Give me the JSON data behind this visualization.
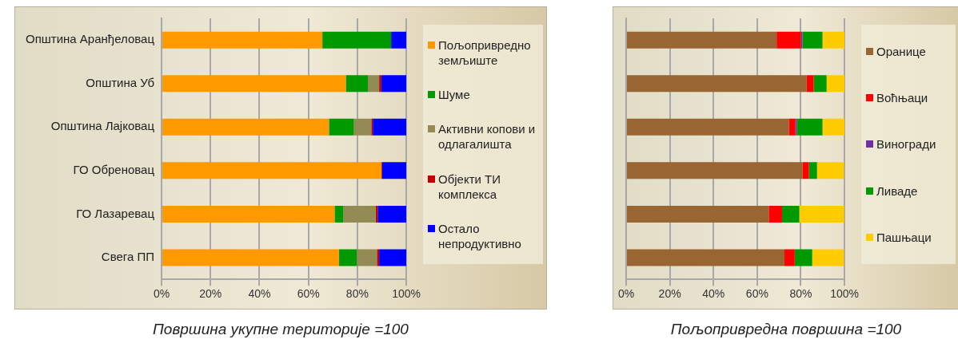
{
  "chart_data": [
    {
      "type": "bar",
      "orientation": "horizontal",
      "stacked": true,
      "xlabel": "Површина укупне територије =100",
      "categories": [
        "Општина Аранђеловац",
        "Општина Уб",
        "Општина Лајковац",
        "ГО Обреновац",
        "ГО Лазаревац",
        "Свега ПП"
      ],
      "series": [
        {
          "name": "Пољопривредно земљиште",
          "color": "#ff9900",
          "values": [
            65.7,
            75.3,
            68.4,
            89.8,
            70.7,
            72.5
          ]
        },
        {
          "name": "Шуме",
          "color": "#009900",
          "values": [
            28.1,
            9.0,
            10.2,
            0,
            3.6,
            7.3
          ]
        },
        {
          "name": "Активни копови и одлагалишта",
          "color": "#948a54",
          "values": [
            0,
            4.6,
            7.1,
            0,
            13.2,
            8.2
          ]
        },
        {
          "name": "Објекти ТИ комплекса",
          "color": "#c00000",
          "values": [
            0,
            0.9,
            0.6,
            0.3,
            0.8,
            0.9
          ]
        },
        {
          "name": "Остало непродуктивно",
          "color": "#0000ff",
          "values": [
            6.2,
            10.2,
            13.7,
            9.9,
            11.7,
            11.1
          ]
        }
      ],
      "xlim": [
        0,
        100
      ],
      "xticks": [
        {
          "value": 0,
          "label": "0%"
        },
        {
          "value": 20,
          "label": "20%"
        },
        {
          "value": 40,
          "label": "40%"
        },
        {
          "value": 60,
          "label": "60%"
        },
        {
          "value": 80,
          "label": "80%"
        },
        {
          "value": 100,
          "label": "100%"
        }
      ],
      "grid": "x",
      "legend": "right"
    },
    {
      "type": "bar",
      "orientation": "horizontal",
      "stacked": true,
      "xlabel": "Пољопривредна површина =100",
      "categories": [
        null,
        null,
        null,
        null,
        null,
        null
      ],
      "series": [
        {
          "name": "Оранице",
          "color": "#996633",
          "values": [
            68.9,
            82.7,
            74.5,
            80.7,
            65.3,
            72.5
          ]
        },
        {
          "name": "Воћњаци",
          "color": "#ff0000",
          "values": [
            11.1,
            3.2,
            3.0,
            3.0,
            6.1,
            4.7
          ]
        },
        {
          "name": "Виногради",
          "color": "#7030a0",
          "values": [
            0.7,
            0,
            0.7,
            null,
            null,
            null
          ]
        },
        {
          "name": "Ливаде",
          "color": "#009900",
          "values": [
            9.2,
            5.9,
            11.7,
            3.7,
            7.9,
            8.0
          ]
        },
        {
          "name": "Пашњаци",
          "color": "#ffcc00",
          "values": [
            10.1,
            8.2,
            10.1,
            12.3,
            20.5,
            14.5
          ]
        }
      ],
      "xlim": [
        0,
        100
      ],
      "xticks": [
        {
          "value": 0,
          "label": "0%"
        },
        {
          "value": 20,
          "label": "20%"
        },
        {
          "value": 40,
          "label": "40%"
        },
        {
          "value": 60,
          "label": "60%"
        },
        {
          "value": 80,
          "label": "80%"
        },
        {
          "value": 100,
          "label": "100%"
        }
      ],
      "grid": "x",
      "legend": "right",
      "tick_labels": "x"
    }
  ]
}
